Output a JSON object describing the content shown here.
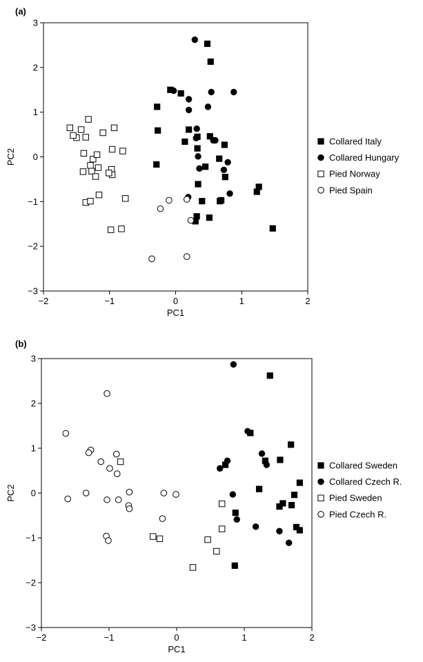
{
  "chart_data": [
    {
      "panel_label": "(a)",
      "type": "scatter",
      "xlabel": "PC1",
      "ylabel": "PC2",
      "xlim": [
        -2,
        2
      ],
      "ylim": [
        -3,
        3
      ],
      "xticks": [
        -2,
        -1,
        0,
        1,
        2
      ],
      "yticks": [
        -3,
        -2,
        -1,
        0,
        1,
        2,
        3
      ],
      "grid": false,
      "legend_position": "right",
      "series": [
        {
          "name": "Collared Italy",
          "marker": "filled-square",
          "color": "#000000",
          "points": [
            [
              0.48,
              2.53
            ],
            [
              0.53,
              2.13
            ],
            [
              -0.08,
              1.5
            ],
            [
              0.08,
              1.42
            ],
            [
              -0.28,
              1.12
            ],
            [
              -0.27,
              0.59
            ],
            [
              0.2,
              0.61
            ],
            [
              0.33,
              0.45
            ],
            [
              0.52,
              0.46
            ],
            [
              0.14,
              0.34
            ],
            [
              0.33,
              0.19
            ],
            [
              0.66,
              -0.04
            ],
            [
              0.74,
              0.27
            ],
            [
              0.45,
              -0.22
            ],
            [
              -0.29,
              -0.17
            ],
            [
              0.75,
              -0.45
            ],
            [
              0.34,
              -0.61
            ],
            [
              0.69,
              -0.97
            ],
            [
              0.4,
              -0.99
            ],
            [
              0.67,
              -0.99
            ],
            [
              0.32,
              -1.33
            ],
            [
              0.3,
              -1.44
            ],
            [
              0.51,
              -1.36
            ],
            [
              1.26,
              -0.67
            ],
            [
              1.23,
              -0.78
            ],
            [
              1.47,
              -1.6
            ]
          ]
        },
        {
          "name": "Collared Hungary",
          "marker": "filled-circle",
          "color": "#000000",
          "points": [
            [
              0.29,
              2.62
            ],
            [
              -0.03,
              1.48
            ],
            [
              0.2,
              1.29
            ],
            [
              0.54,
              1.45
            ],
            [
              0.88,
              1.45
            ],
            [
              0.49,
              1.12
            ],
            [
              0.2,
              1.05
            ],
            [
              0.6,
              0.37
            ],
            [
              0.32,
              0.63
            ],
            [
              0.31,
              0.42
            ],
            [
              0.57,
              0.37
            ],
            [
              0.34,
              0.01
            ],
            [
              0.79,
              -0.12
            ],
            [
              0.82,
              -0.82
            ],
            [
              0.36,
              -0.26
            ],
            [
              0.73,
              -0.29
            ],
            [
              0.19,
              -0.9
            ]
          ]
        },
        {
          "name": "Pied Norway",
          "marker": "open-square",
          "color": "#000000",
          "points": [
            [
              -1.6,
              0.65
            ],
            [
              -1.5,
              0.43
            ],
            [
              -1.32,
              0.84
            ],
            [
              -1.43,
              0.61
            ],
            [
              -1.55,
              0.48
            ],
            [
              -0.93,
              0.65
            ],
            [
              -1.1,
              0.54
            ],
            [
              -1.36,
              0.44
            ],
            [
              -1.25,
              -0.05
            ],
            [
              -1.29,
              -0.19
            ],
            [
              -1.39,
              0.08
            ],
            [
              -1.19,
              0.05
            ],
            [
              -1.4,
              -0.33
            ],
            [
              -1.17,
              -0.24
            ],
            [
              -1.27,
              -0.32
            ],
            [
              -0.96,
              0.17
            ],
            [
              -0.8,
              0.13
            ],
            [
              -0.97,
              -0.28
            ],
            [
              -0.96,
              -0.4
            ],
            [
              -1.01,
              -0.36
            ],
            [
              -1.21,
              -0.44
            ],
            [
              -1.16,
              -0.85
            ],
            [
              -1.36,
              -1.02
            ],
            [
              -1.29,
              -0.99
            ],
            [
              -0.76,
              -0.93
            ],
            [
              -0.98,
              -1.63
            ],
            [
              -0.82,
              -1.61
            ]
          ]
        },
        {
          "name": "Pied Spain",
          "marker": "open-circle",
          "color": "#000000",
          "points": [
            [
              -0.1,
              -0.97
            ],
            [
              -0.23,
              -1.16
            ],
            [
              0.17,
              -0.95
            ],
            [
              0.23,
              -1.42
            ],
            [
              -0.36,
              -2.28
            ],
            [
              0.17,
              -2.23
            ]
          ]
        }
      ]
    },
    {
      "panel_label": "(b)",
      "type": "scatter",
      "xlabel": "PC1",
      "ylabel": "PC2",
      "xlim": [
        -2,
        2
      ],
      "ylim": [
        -3,
        3
      ],
      "xticks": [
        -2,
        -1,
        0,
        1,
        2
      ],
      "yticks": [
        -3,
        -2,
        -1,
        0,
        1,
        2,
        3
      ],
      "grid": false,
      "legend_position": "right",
      "series": [
        {
          "name": "Collared Sweden",
          "marker": "filled-square",
          "color": "#000000",
          "points": [
            [
              1.38,
              2.62
            ],
            [
              1.09,
              1.34
            ],
            [
              1.69,
              1.08
            ],
            [
              1.53,
              0.74
            ],
            [
              1.31,
              0.72
            ],
            [
              1.82,
              0.23
            ],
            [
              1.22,
              0.09
            ],
            [
              1.74,
              -0.04
            ],
            [
              1.57,
              -0.23
            ],
            [
              1.52,
              -0.3
            ],
            [
              1.7,
              -0.27
            ],
            [
              0.72,
              0.63
            ],
            [
              0.87,
              -0.44
            ],
            [
              1.77,
              -0.76
            ],
            [
              1.82,
              -0.83
            ],
            [
              0.86,
              -1.62
            ]
          ]
        },
        {
          "name": "Collared Czech R.",
          "marker": "filled-circle",
          "color": "#000000",
          "points": [
            [
              0.84,
              2.87
            ],
            [
              1.05,
              1.38
            ],
            [
              1.26,
              0.88
            ],
            [
              1.33,
              0.63
            ],
            [
              0.75,
              0.72
            ],
            [
              0.64,
              0.55
            ],
            [
              0.83,
              -0.03
            ],
            [
              0.89,
              -0.59
            ],
            [
              1.17,
              -0.75
            ],
            [
              1.52,
              -0.85
            ],
            [
              1.66,
              -1.11
            ]
          ]
        },
        {
          "name": "Pied Sweden",
          "marker": "open-square",
          "color": "#000000",
          "points": [
            [
              -0.83,
              0.7
            ],
            [
              0.67,
              -0.24
            ],
            [
              0.67,
              -0.8
            ],
            [
              -0.35,
              -0.97
            ],
            [
              -0.25,
              -1.02
            ],
            [
              0.46,
              -1.04
            ],
            [
              0.59,
              -1.3
            ],
            [
              0.24,
              -1.66
            ]
          ]
        },
        {
          "name": "Pied Czech R.",
          "marker": "open-circle",
          "color": "#000000",
          "points": [
            [
              -1.03,
              2.22
            ],
            [
              -1.64,
              1.33
            ],
            [
              -1.27,
              0.96
            ],
            [
              -1.3,
              0.9
            ],
            [
              -0.89,
              0.87
            ],
            [
              -1.12,
              0.7
            ],
            [
              -0.99,
              0.55
            ],
            [
              -0.88,
              0.43
            ],
            [
              -1.61,
              -0.13
            ],
            [
              -1.34,
              0.0
            ],
            [
              -1.03,
              -0.15
            ],
            [
              -0.86,
              -0.15
            ],
            [
              -0.7,
              0.02
            ],
            [
              -0.71,
              -0.28
            ],
            [
              -0.7,
              -0.35
            ],
            [
              -0.19,
              0.0
            ],
            [
              -0.01,
              -0.03
            ],
            [
              -0.21,
              -0.57
            ],
            [
              -1.04,
              -0.96
            ],
            [
              -1.01,
              -1.06
            ]
          ]
        }
      ]
    }
  ]
}
